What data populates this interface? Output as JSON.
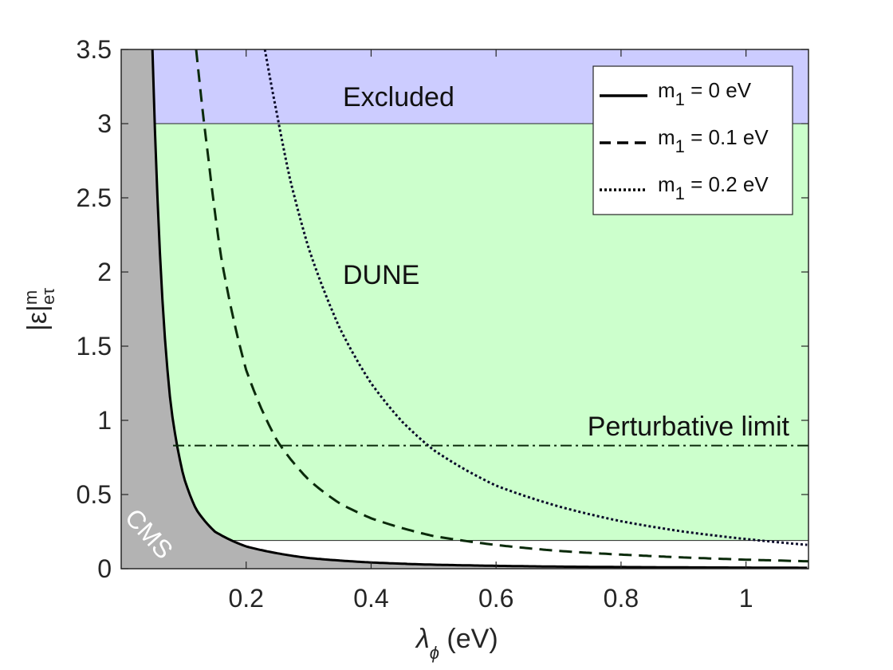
{
  "chart_data": {
    "type": "line",
    "xlim": [
      0.0,
      1.1
    ],
    "ylim": [
      0.0,
      3.5
    ],
    "x_ticks": [
      "0.2",
      "0.4",
      "0.6",
      "0.8",
      "1"
    ],
    "x_tick_values": [
      0.2,
      0.4,
      0.6,
      0.8,
      1.0
    ],
    "y_ticks": [
      "0",
      "0.5",
      "1",
      "1.5",
      "2",
      "2.5",
      "3",
      "3.5"
    ],
    "y_tick_values": [
      0,
      0.5,
      1,
      1.5,
      2,
      2.5,
      3,
      3.5
    ],
    "xlabel": {
      "main": "λ",
      "sub": "ϕ",
      "unit": " (eV)"
    },
    "ylabel": {
      "main": "|ε|",
      "sup": "m",
      "sub": "eτ"
    },
    "grid": false,
    "legend_position": "top-right",
    "regions": {
      "excluded": {
        "label": "Excluded",
        "y_from": 3.0,
        "color": "#ccccff"
      },
      "dune": {
        "label": "DUNE",
        "y_from": 0.19,
        "y_to": 3.0,
        "color": "#ccffcc"
      },
      "cms": {
        "label": "CMS",
        "color": "#b3b3b3"
      }
    },
    "perturbative_limit": {
      "label": "Perturbative limit",
      "y": 0.83,
      "x_from": 0.083
    },
    "series": [
      {
        "name": "m",
        "name_sub": "1",
        "name_rest": " = 0 eV",
        "style": "solid",
        "x": [
          0.05,
          0.06,
          0.07,
          0.08,
          0.1,
          0.12,
          0.15,
          0.2,
          0.3,
          0.4,
          0.5,
          0.7,
          0.9,
          1.1
        ],
        "y": [
          3.5,
          2.3,
          1.55,
          1.08,
          0.62,
          0.4,
          0.25,
          0.15,
          0.072,
          0.042,
          0.027,
          0.014,
          0.009,
          0.006
        ]
      },
      {
        "name": "m",
        "name_sub": "1",
        "name_rest": " = 0.1 eV",
        "style": "dashed",
        "x": [
          0.12,
          0.14,
          0.16,
          0.2,
          0.25,
          0.3,
          0.35,
          0.4,
          0.5,
          0.6,
          0.7,
          0.8,
          0.9,
          1.0,
          1.1
        ],
        "y": [
          3.5,
          2.75,
          2.1,
          1.34,
          0.86,
          0.6,
          0.44,
          0.34,
          0.22,
          0.16,
          0.12,
          0.095,
          0.076,
          0.061,
          0.05
        ]
      },
      {
        "name": "m",
        "name_sub": "1",
        "name_rest": " = 0.2 eV",
        "style": "dotted",
        "x": [
          0.23,
          0.25,
          0.27,
          0.3,
          0.35,
          0.4,
          0.45,
          0.5,
          0.6,
          0.7,
          0.8,
          0.9,
          1.0,
          1.1
        ],
        "y": [
          3.5,
          3.05,
          2.63,
          2.16,
          1.62,
          1.25,
          0.99,
          0.8,
          0.56,
          0.42,
          0.32,
          0.25,
          0.2,
          0.16
        ]
      }
    ]
  }
}
